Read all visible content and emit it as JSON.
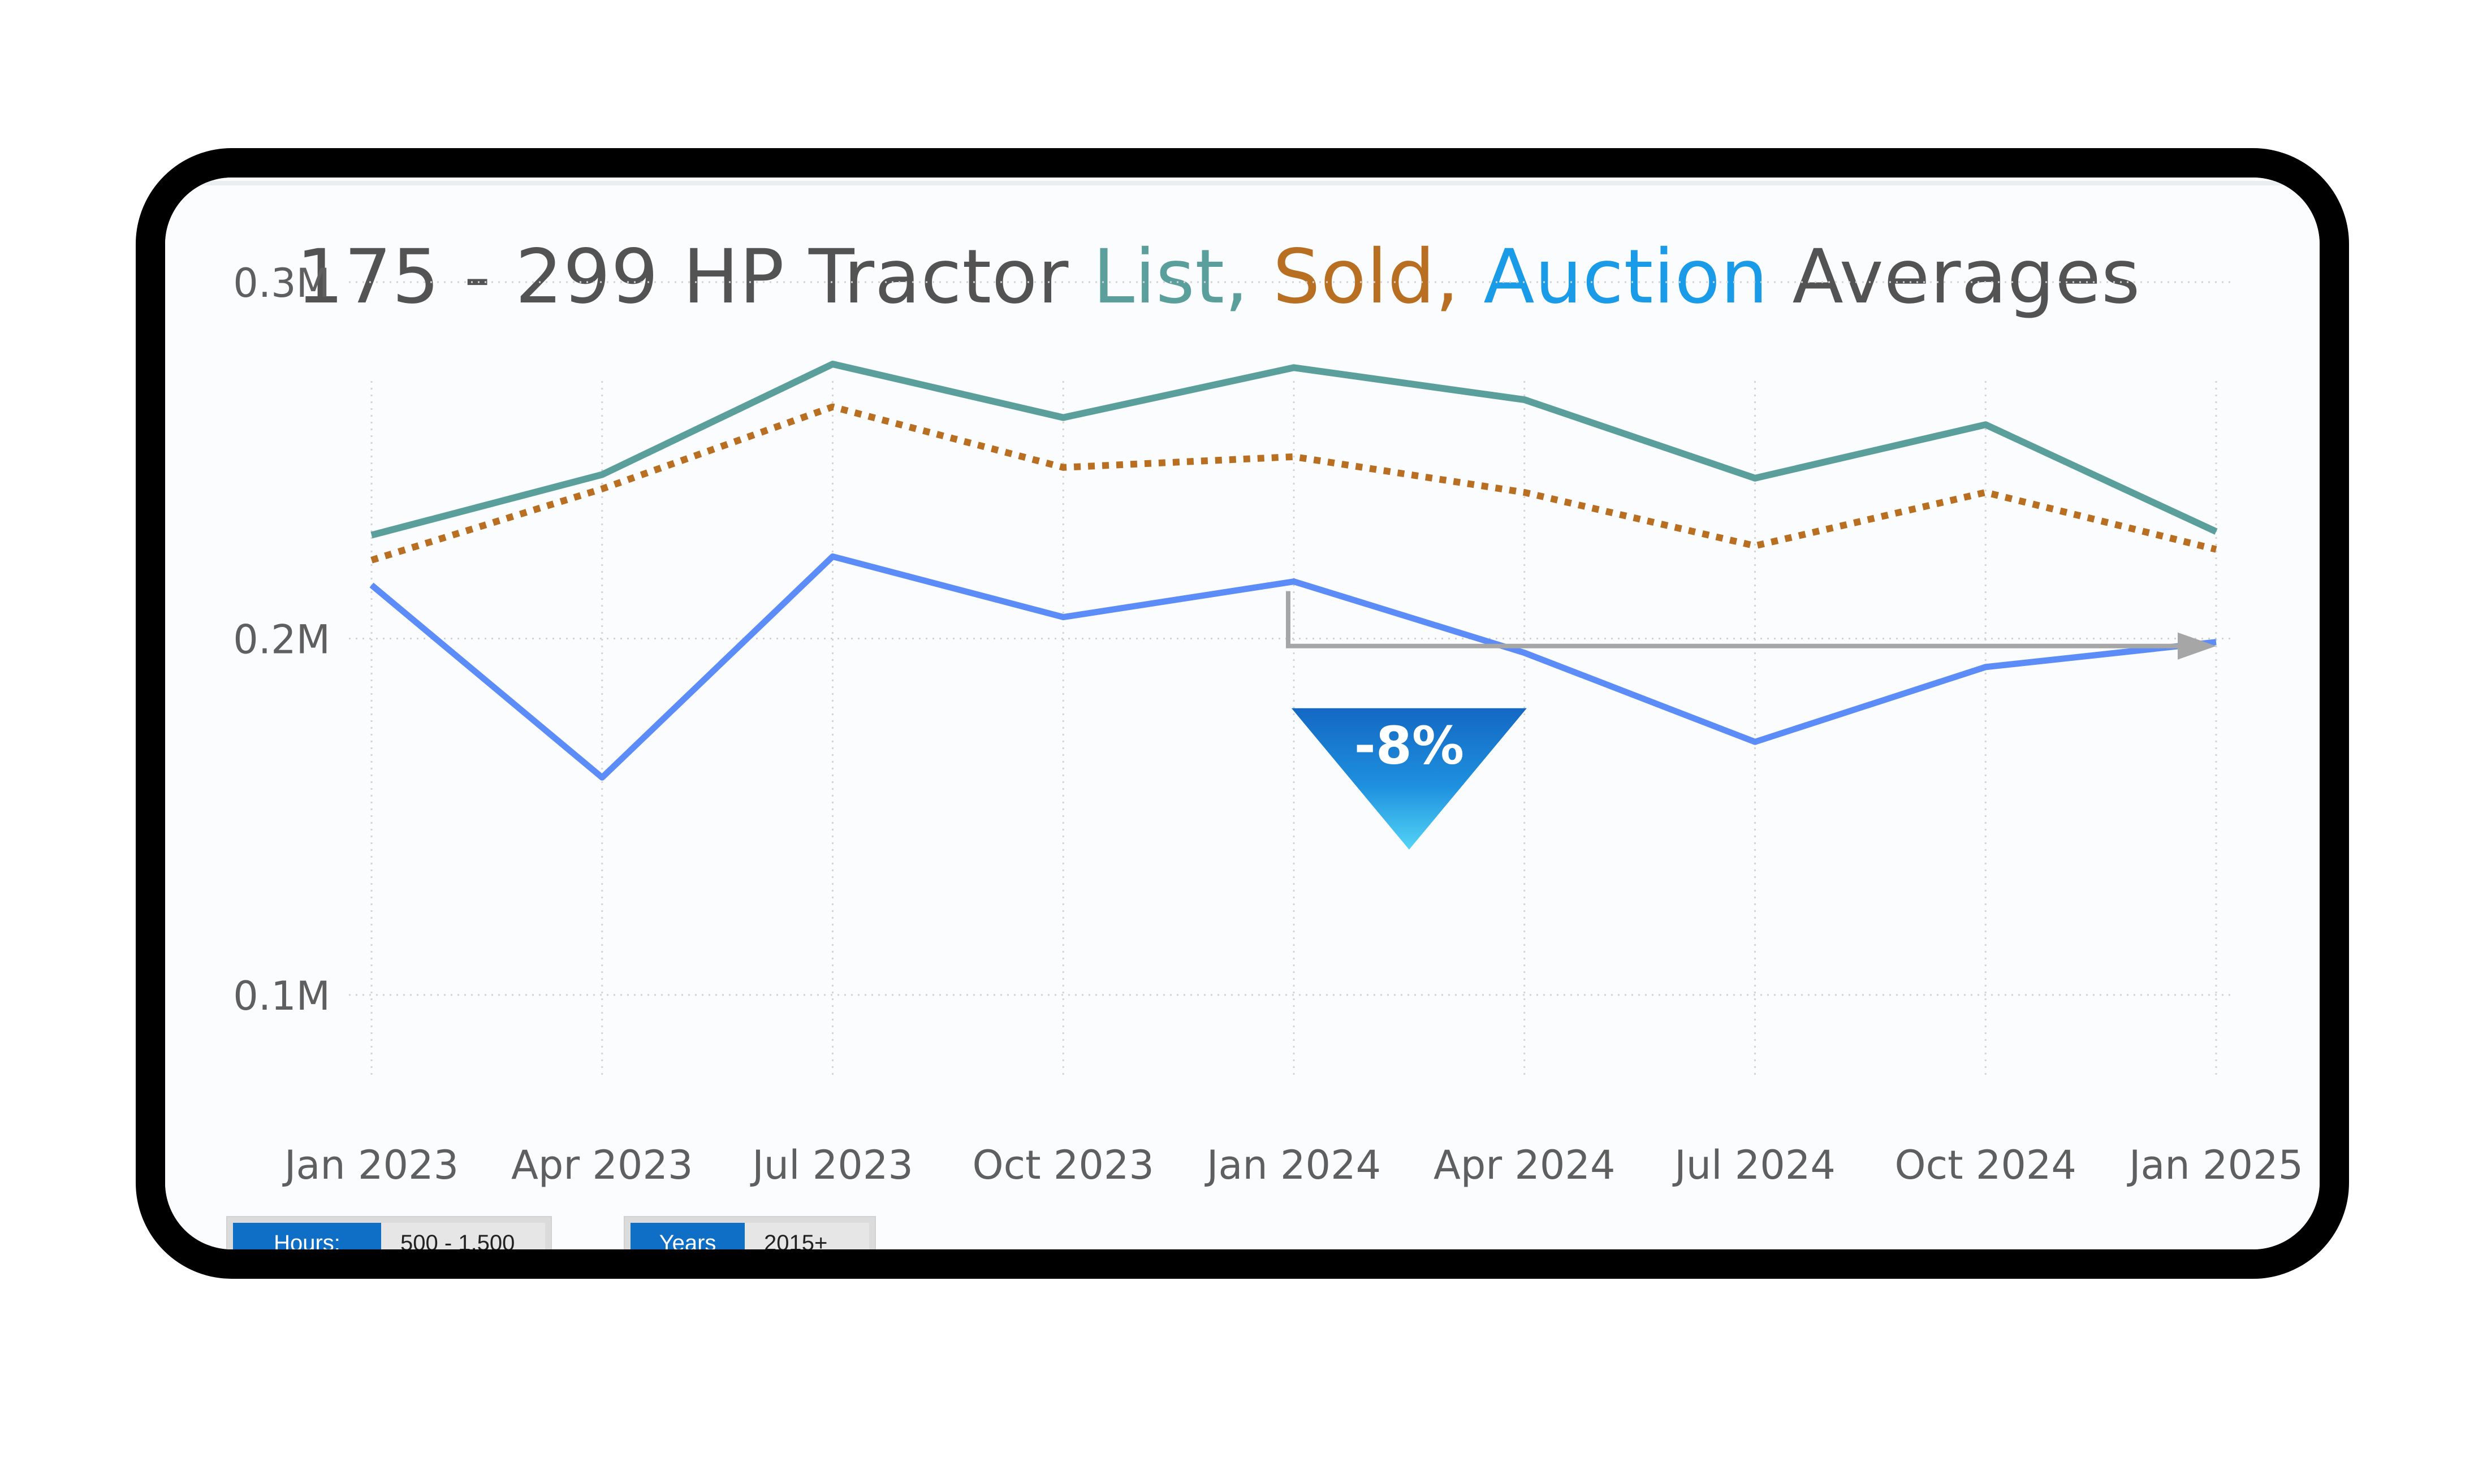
{
  "title": {
    "prefix": "175 - 299 HP Tractor ",
    "list": "List,",
    "sold": "Sold,",
    "auction": "Auction",
    "suffix": " Averages"
  },
  "colors": {
    "list": "#5a9f9b",
    "sold": "#b86f22",
    "auction": "#1a9be8",
    "auction_line": "#5b8cf7",
    "title_gray": "#535353",
    "badge": "#1672c9",
    "arrow": "#a6a6a6",
    "filter_label_bg": "#0f6fc6"
  },
  "annotation": {
    "change_label": "-8%"
  },
  "filters": [
    {
      "label": "Hours:",
      "value": "500 - 1,500"
    },
    {
      "label": "Years",
      "value": "2015+"
    }
  ],
  "chart_data": {
    "type": "line",
    "categories": [
      "Jan 2023",
      "Apr 2023",
      "Jul 2023",
      "Oct 2023",
      "Jan 2024",
      "Apr 2024",
      "Jul 2024",
      "Oct 2024",
      "Jan 2025"
    ],
    "series": [
      {
        "name": "List",
        "style": "solid",
        "values": [
          229000,
          246000,
          277000,
          262000,
          276000,
          267000,
          245000,
          260000,
          230000
        ]
      },
      {
        "name": "Sold",
        "style": "dotted",
        "values": [
          222000,
          242000,
          265000,
          248000,
          251000,
          241000,
          226000,
          241000,
          225000
        ]
      },
      {
        "name": "Auction",
        "style": "solid",
        "values": [
          215000,
          161000,
          223000,
          206000,
          216000,
          196000,
          171000,
          192000,
          199000
        ]
      }
    ],
    "ylim": [
      0.06,
      0.31
    ],
    "y_ticks": [
      {
        "value": 0.3,
        "label": "0.3M"
      },
      {
        "value": 0.2,
        "label": "0.2M"
      },
      {
        "value": 0.1,
        "label": "0.1M"
      }
    ],
    "grid": true,
    "xlabel": "",
    "ylabel": "",
    "annotation": {
      "from": "Jan 2024",
      "to": "Jan 2025",
      "change": "-8%"
    }
  }
}
